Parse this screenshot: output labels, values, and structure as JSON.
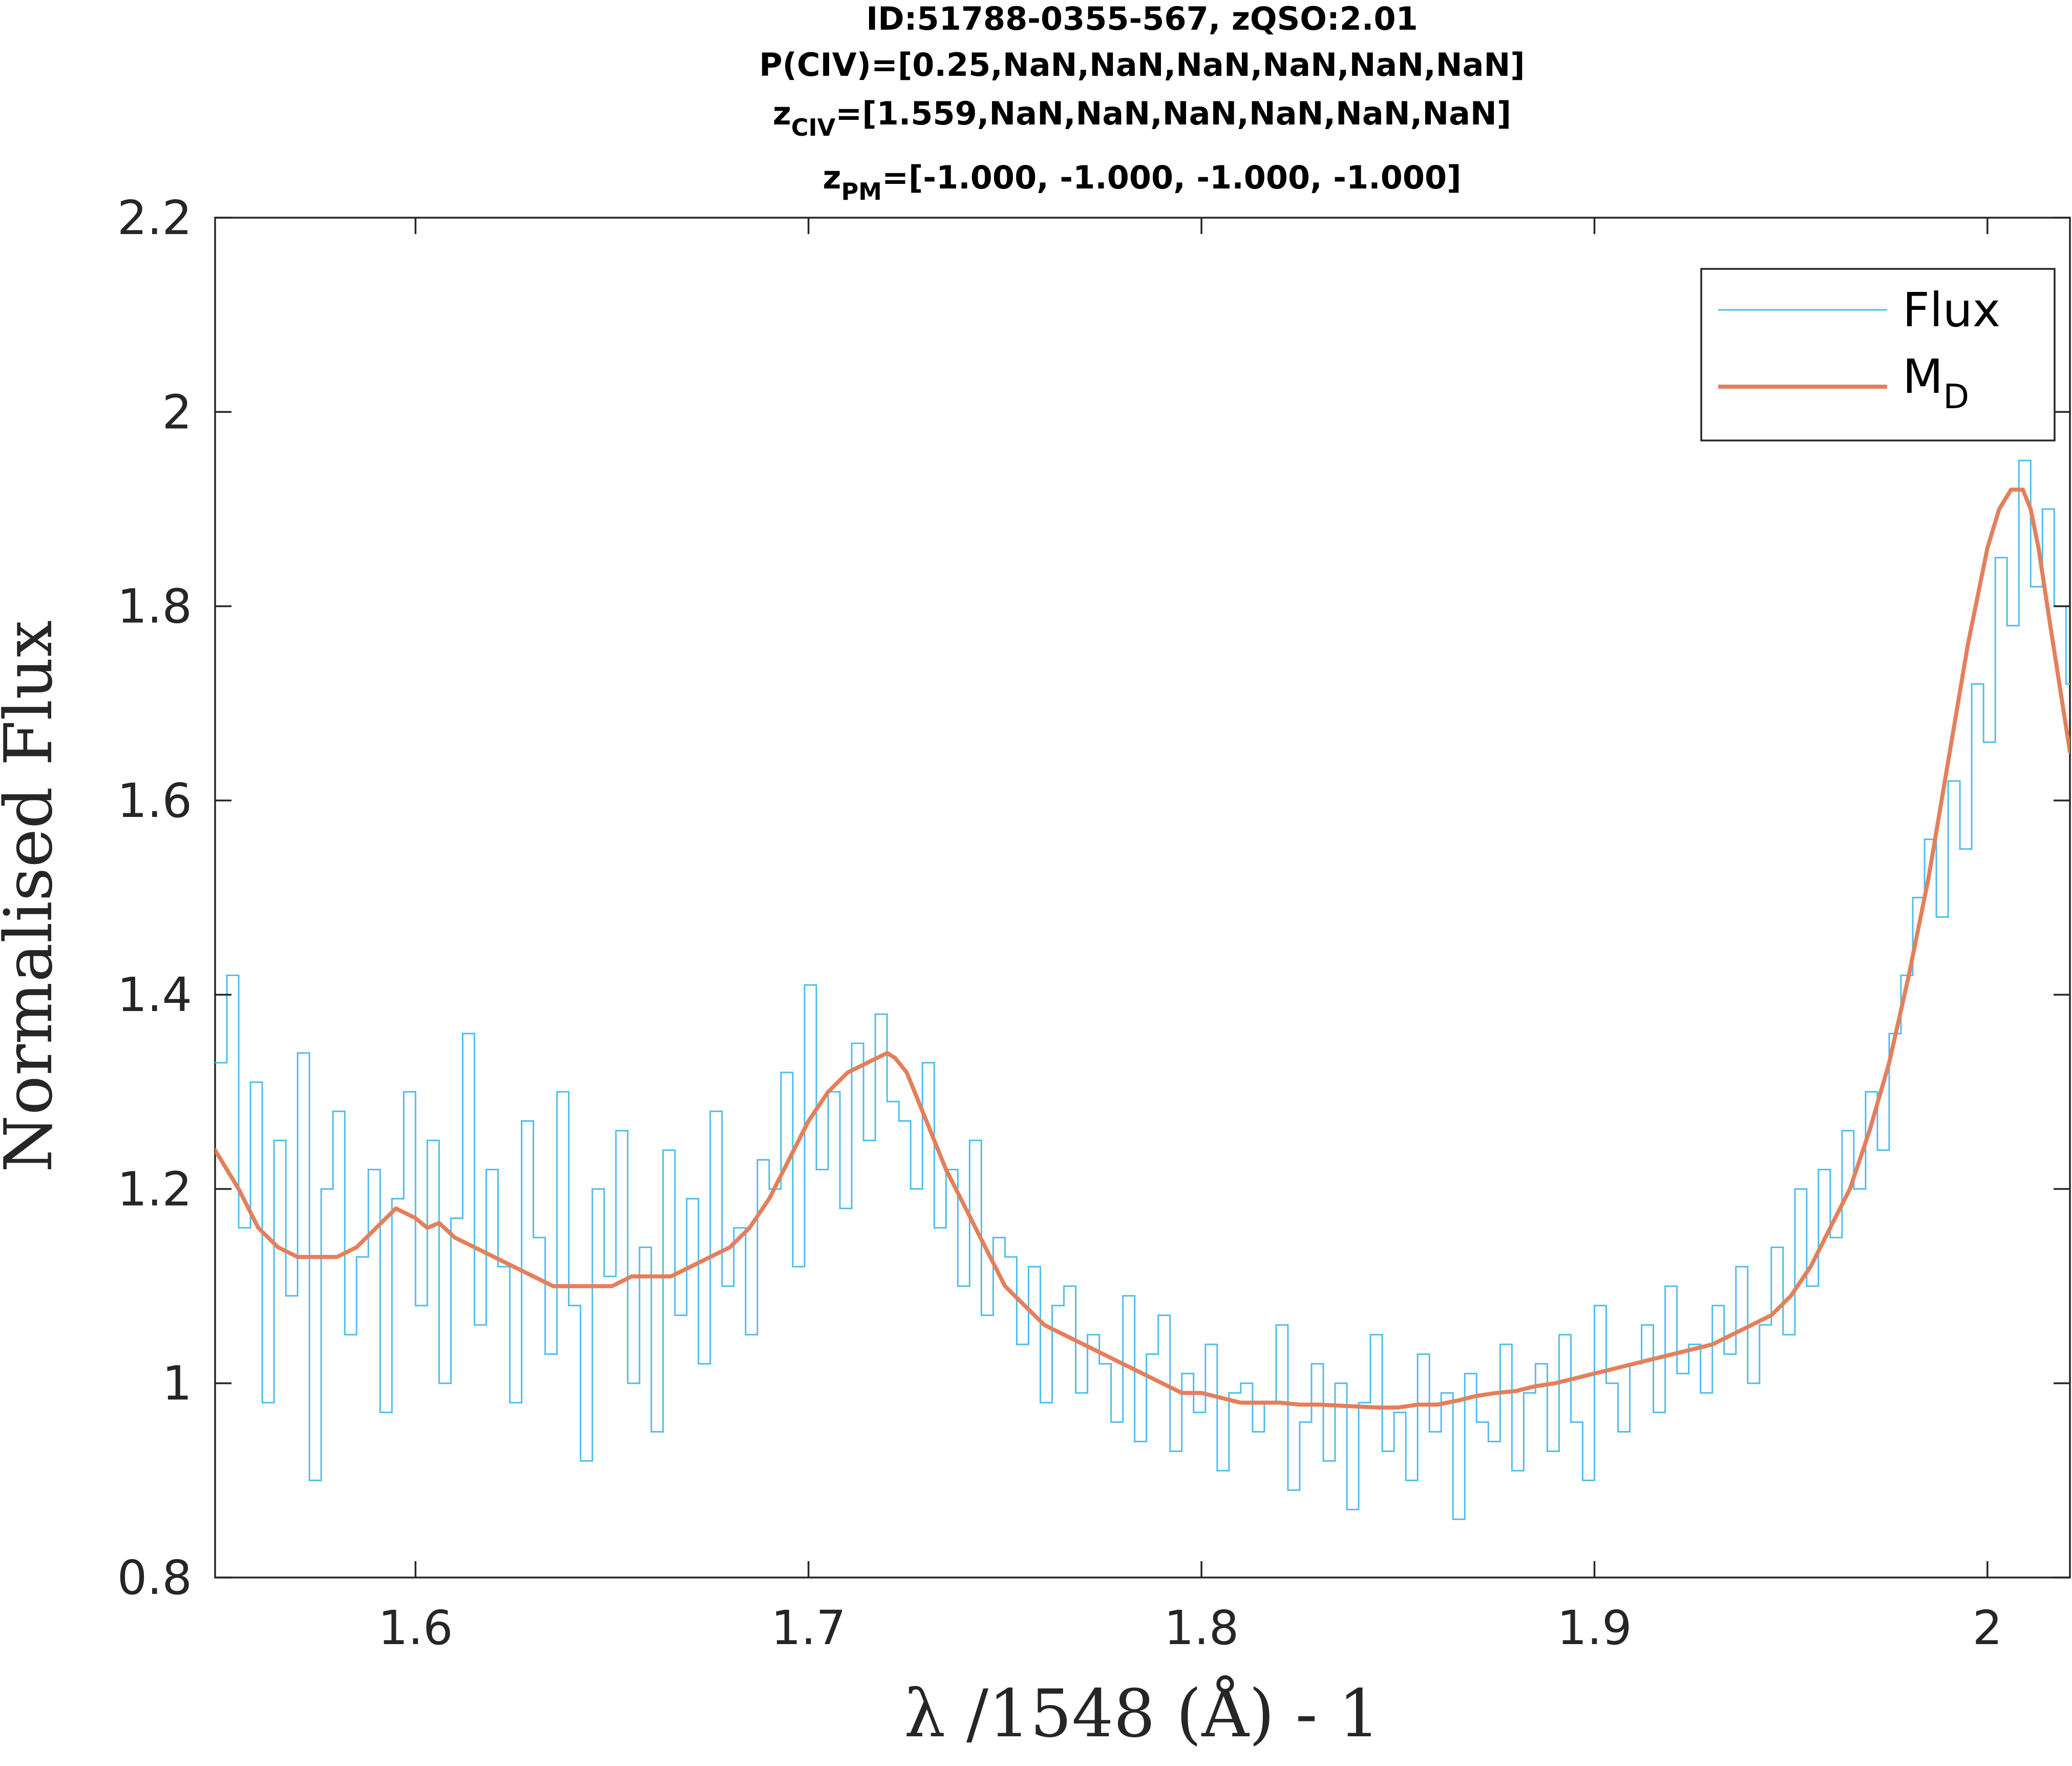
{
  "chart_data": {
    "type": "line",
    "title_lines": {
      "line1": "ID:51788-0355-567, zQSO:2.01",
      "line2": "P(CIV)=[0.25,NaN,NaN,NaN,NaN,NaN,NaN]",
      "line3_prefix": "z",
      "line3_sub": "CIV",
      "line3_rest": "=[1.559,NaN,NaN,NaN,NaN,NaN,NaN]",
      "line4_prefix": "z",
      "line4_sub": "PM",
      "line4_rest": "=[-1.000, -1.000, -1.000, -1.000]"
    },
    "xlabel": "λ /1548 (Å) - 1",
    "ylabel": "Normalised Flux",
    "xlim": [
      1.549,
      2.021
    ],
    "ylim": [
      0.8,
      2.2
    ],
    "xticks": [
      1.6,
      1.7,
      1.8,
      1.9,
      2.0
    ],
    "xtick_labels": [
      "1.6",
      "1.7",
      "1.8",
      "1.9",
      "2"
    ],
    "yticks": [
      0.8,
      1.0,
      1.2,
      1.4,
      1.6,
      1.8,
      2.0,
      2.2
    ],
    "ytick_labels": [
      "0.8",
      "1",
      "1.2",
      "1.4",
      "1.6",
      "1.8",
      "2",
      "2.2"
    ],
    "grid": false,
    "legend_position": "top-right",
    "series": [
      {
        "name": "Flux",
        "style": "stairs",
        "color": "#4DBEEE",
        "x": [
          1.549,
          1.552,
          1.555,
          1.558,
          1.561,
          1.564,
          1.567,
          1.57,
          1.573,
          1.576,
          1.579,
          1.582,
          1.585,
          1.588,
          1.591,
          1.594,
          1.597,
          1.6,
          1.603,
          1.606,
          1.609,
          1.612,
          1.615,
          1.618,
          1.621,
          1.624,
          1.627,
          1.63,
          1.633,
          1.636,
          1.639,
          1.642,
          1.645,
          1.648,
          1.651,
          1.654,
          1.657,
          1.66,
          1.663,
          1.666,
          1.669,
          1.672,
          1.675,
          1.678,
          1.681,
          1.684,
          1.687,
          1.69,
          1.693,
          1.696,
          1.699,
          1.702,
          1.705,
          1.708,
          1.711,
          1.714,
          1.717,
          1.72,
          1.723,
          1.726,
          1.729,
          1.732,
          1.735,
          1.738,
          1.741,
          1.744,
          1.747,
          1.75,
          1.753,
          1.756,
          1.759,
          1.762,
          1.765,
          1.768,
          1.771,
          1.774,
          1.777,
          1.78,
          1.783,
          1.786,
          1.789,
          1.792,
          1.795,
          1.798,
          1.801,
          1.804,
          1.807,
          1.81,
          1.813,
          1.816,
          1.819,
          1.822,
          1.825,
          1.828,
          1.831,
          1.834,
          1.837,
          1.84,
          1.843,
          1.846,
          1.849,
          1.852,
          1.855,
          1.858,
          1.861,
          1.864,
          1.867,
          1.87,
          1.873,
          1.876,
          1.879,
          1.882,
          1.885,
          1.888,
          1.891,
          1.894,
          1.897,
          1.9,
          1.903,
          1.906,
          1.909,
          1.912,
          1.915,
          1.918,
          1.921,
          1.924,
          1.927,
          1.93,
          1.933,
          1.936,
          1.939,
          1.942,
          1.945,
          1.948,
          1.951,
          1.954,
          1.957,
          1.96,
          1.963,
          1.966,
          1.969,
          1.972,
          1.975,
          1.978,
          1.981,
          1.984,
          1.987,
          1.99,
          1.993,
          1.996,
          1.999,
          2.002,
          2.005,
          2.008,
          2.011,
          2.014,
          2.017,
          2.02
        ],
        "y": [
          1.33,
          1.42,
          1.16,
          1.31,
          0.98,
          1.25,
          1.09,
          1.34,
          0.9,
          1.2,
          1.28,
          1.05,
          1.13,
          1.22,
          0.97,
          1.19,
          1.3,
          1.08,
          1.25,
          1.0,
          1.17,
          1.36,
          1.06,
          1.22,
          1.12,
          0.98,
          1.27,
          1.15,
          1.03,
          1.3,
          1.08,
          0.92,
          1.2,
          1.11,
          1.26,
          1.0,
          1.14,
          0.95,
          1.24,
          1.07,
          1.19,
          1.02,
          1.28,
          1.1,
          1.16,
          1.05,
          1.23,
          1.2,
          1.32,
          1.12,
          1.41,
          1.22,
          1.3,
          1.18,
          1.35,
          1.25,
          1.38,
          1.29,
          1.27,
          1.2,
          1.33,
          1.16,
          1.22,
          1.1,
          1.25,
          1.07,
          1.15,
          1.13,
          1.04,
          1.12,
          0.98,
          1.08,
          1.1,
          0.99,
          1.05,
          1.02,
          0.96,
          1.09,
          0.94,
          1.03,
          1.07,
          0.93,
          1.01,
          0.97,
          1.04,
          0.91,
          0.99,
          1.0,
          0.95,
          0.98,
          1.06,
          0.89,
          0.96,
          1.02,
          0.92,
          1.0,
          0.87,
          0.98,
          1.05,
          0.93,
          0.97,
          0.9,
          1.03,
          0.95,
          0.99,
          0.86,
          1.01,
          0.96,
          0.94,
          1.04,
          0.91,
          0.99,
          1.02,
          0.93,
          1.05,
          0.96,
          0.9,
          1.08,
          1.0,
          0.95,
          1.02,
          1.06,
          0.97,
          1.1,
          1.01,
          1.04,
          0.99,
          1.08,
          1.03,
          1.12,
          1.0,
          1.06,
          1.14,
          1.05,
          1.2,
          1.1,
          1.22,
          1.15,
          1.26,
          1.2,
          1.3,
          1.24,
          1.36,
          1.42,
          1.5,
          1.56,
          1.48,
          1.62,
          1.55,
          1.72,
          1.66,
          1.85,
          1.78,
          1.95,
          1.82,
          1.9,
          1.8,
          1.72
        ]
      },
      {
        "name": "M_D",
        "style": "line",
        "color": "#D95319",
        "x": [
          1.549,
          1.555,
          1.56,
          1.565,
          1.57,
          1.575,
          1.58,
          1.585,
          1.59,
          1.595,
          1.6,
          1.603,
          1.606,
          1.61,
          1.615,
          1.62,
          1.625,
          1.63,
          1.635,
          1.64,
          1.645,
          1.65,
          1.655,
          1.66,
          1.665,
          1.67,
          1.675,
          1.68,
          1.685,
          1.69,
          1.695,
          1.7,
          1.705,
          1.71,
          1.715,
          1.72,
          1.722,
          1.725,
          1.73,
          1.735,
          1.74,
          1.745,
          1.75,
          1.755,
          1.76,
          1.765,
          1.77,
          1.775,
          1.78,
          1.785,
          1.79,
          1.795,
          1.8,
          1.805,
          1.81,
          1.815,
          1.82,
          1.825,
          1.83,
          1.835,
          1.84,
          1.845,
          1.85,
          1.855,
          1.86,
          1.865,
          1.87,
          1.875,
          1.88,
          1.885,
          1.89,
          1.895,
          1.9,
          1.905,
          1.91,
          1.915,
          1.92,
          1.925,
          1.93,
          1.935,
          1.94,
          1.945,
          1.95,
          1.955,
          1.96,
          1.965,
          1.97,
          1.975,
          1.98,
          1.985,
          1.99,
          1.995,
          2.0,
          2.003,
          2.006,
          2.009,
          2.011,
          2.013,
          2.016,
          2.021
        ],
        "y": [
          1.24,
          1.2,
          1.16,
          1.14,
          1.13,
          1.13,
          1.13,
          1.14,
          1.16,
          1.18,
          1.17,
          1.16,
          1.165,
          1.15,
          1.14,
          1.13,
          1.12,
          1.11,
          1.1,
          1.1,
          1.1,
          1.1,
          1.11,
          1.11,
          1.11,
          1.12,
          1.13,
          1.14,
          1.16,
          1.19,
          1.23,
          1.27,
          1.3,
          1.32,
          1.33,
          1.34,
          1.335,
          1.32,
          1.27,
          1.22,
          1.18,
          1.14,
          1.1,
          1.08,
          1.06,
          1.05,
          1.04,
          1.03,
          1.02,
          1.01,
          1.0,
          0.99,
          0.99,
          0.985,
          0.98,
          0.98,
          0.98,
          0.978,
          0.978,
          0.977,
          0.976,
          0.975,
          0.975,
          0.978,
          0.978,
          0.982,
          0.987,
          0.99,
          0.992,
          0.997,
          1.0,
          1.005,
          1.01,
          1.015,
          1.02,
          1.025,
          1.03,
          1.035,
          1.04,
          1.05,
          1.06,
          1.07,
          1.09,
          1.12,
          1.16,
          1.2,
          1.26,
          1.33,
          1.42,
          1.52,
          1.64,
          1.76,
          1.86,
          1.9,
          1.92,
          1.92,
          1.9,
          1.86,
          1.78,
          1.65
        ]
      }
    ]
  },
  "legend": {
    "flux_label": "Flux",
    "md_label_main": "M",
    "md_label_sub": "D"
  }
}
